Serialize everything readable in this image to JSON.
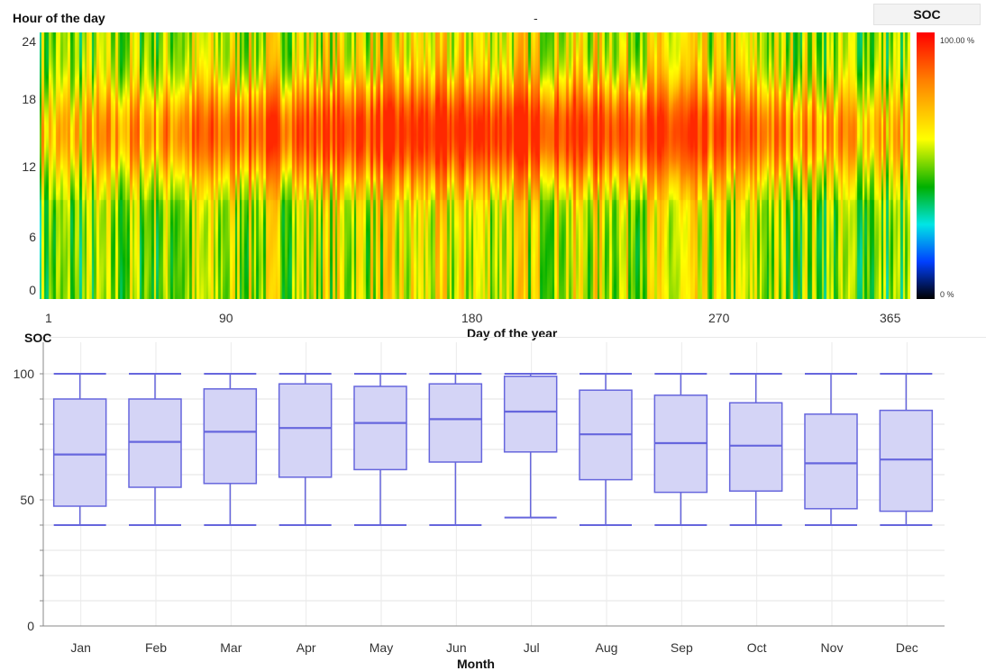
{
  "heatmap": {
    "ylabel": "Hour of the day",
    "title": "-",
    "xlabel": "Day of the year",
    "colorbar_title": "SOC",
    "colorbar_max_label": "100.00 %",
    "colorbar_min_label": "0 %",
    "y_ticks": [
      "24",
      "18",
      "12",
      "6",
      "0"
    ],
    "x_ticks": [
      "1",
      "90",
      "180",
      "270",
      "365"
    ]
  },
  "boxplot": {
    "ylabel": "SOC",
    "xlabel": "Month",
    "y_ticks": [
      "100",
      "50",
      "0"
    ]
  },
  "chart_data": [
    {
      "type": "heatmap",
      "title": "-",
      "xlabel": "Day of the year",
      "ylabel": "Hour of the day",
      "xlim": [
        1,
        365
      ],
      "ylim": [
        0,
        24
      ],
      "x_ticks": [
        1,
        90,
        180,
        270,
        365
      ],
      "y_ticks": [
        0,
        6,
        12,
        18,
        24
      ],
      "colorbar": {
        "title": "SOC",
        "min_label": "0 %",
        "max_label": "100.00 %",
        "colors": [
          "#000000",
          "#0040ff",
          "#00e5e5",
          "#00b000",
          "#ffff00",
          "#ff8000",
          "#ff0000"
        ]
      },
      "description_of_pattern": "SOC lowest around hours 0-9, highest (near 100%) around hours 11-19; summer days (approx. 100-270) mostly high"
    },
    {
      "type": "box",
      "title": "",
      "xlabel": "Month",
      "ylabel": "SOC",
      "ylim": [
        0,
        100
      ],
      "y_ticks": [
        0,
        50,
        100
      ],
      "categories": [
        "Jan",
        "Feb",
        "Mar",
        "Apr",
        "May",
        "Jun",
        "Jul",
        "Aug",
        "Sep",
        "Oct",
        "Nov",
        "Dec"
      ],
      "min": [
        40,
        40,
        40,
        40,
        40,
        40,
        43,
        40,
        40,
        40,
        40,
        40
      ],
      "q1": [
        47.5,
        55,
        56.5,
        59,
        62,
        65,
        69,
        58,
        53,
        53.5,
        46.5,
        45.5
      ],
      "median": [
        68,
        73,
        77,
        78.5,
        80.5,
        82,
        85,
        76,
        72.5,
        71.5,
        64.5,
        66
      ],
      "q3": [
        90,
        90,
        94,
        96,
        95,
        96,
        99,
        93.5,
        91.5,
        88.5,
        84,
        85.5
      ],
      "max": [
        100,
        100,
        100,
        100,
        100,
        100,
        100,
        100,
        100,
        100,
        100,
        100
      ],
      "box_color": "#6666dd",
      "box_fill": "#d4d4f6"
    }
  ]
}
